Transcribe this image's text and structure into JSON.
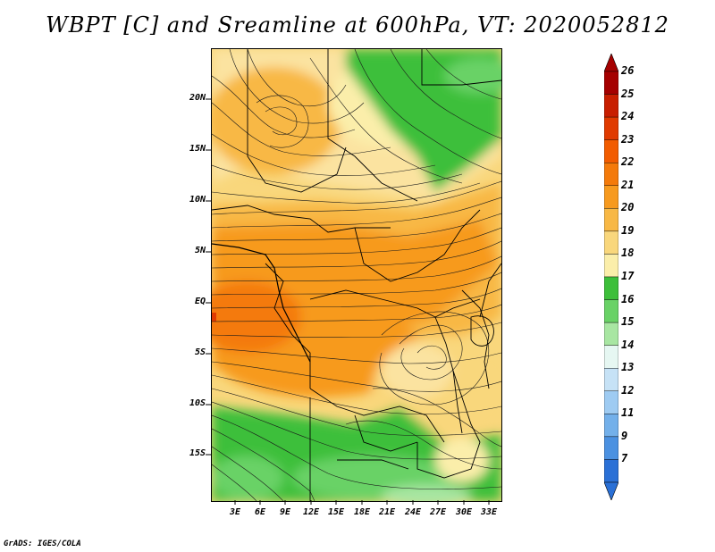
{
  "title": "WBPT [C] and Sreamline at 600hPa, VT: 2020052812",
  "y_axis_labels": [
    "20N",
    "15N",
    "10N",
    "5N",
    "EQ",
    "5S",
    "10S",
    "15S"
  ],
  "x_axis_labels": [
    "3E",
    "6E",
    "9E",
    "12E",
    "15E",
    "18E",
    "21E",
    "24E",
    "27E",
    "30E",
    "33E"
  ],
  "colorbar": {
    "labels": [
      "26",
      "25",
      "24",
      "23",
      "22",
      "21",
      "20",
      "19",
      "18",
      "17",
      "16",
      "15",
      "14",
      "13",
      "12",
      "11",
      "9",
      "7"
    ],
    "colors": [
      "#a50000",
      "#c81e00",
      "#e03a00",
      "#f25c00",
      "#f47a0a",
      "#f79a1e",
      "#f8b845",
      "#f9d77c",
      "#fbeeaa",
      "#3dbf3a",
      "#69d266",
      "#a8e6a2",
      "#e6f7f2",
      "#c6e2f6",
      "#9ecbf2",
      "#73b0ea",
      "#4b91e1",
      "#2a70d6"
    ]
  },
  "footer": "GrADS: IGES/COLA"
}
